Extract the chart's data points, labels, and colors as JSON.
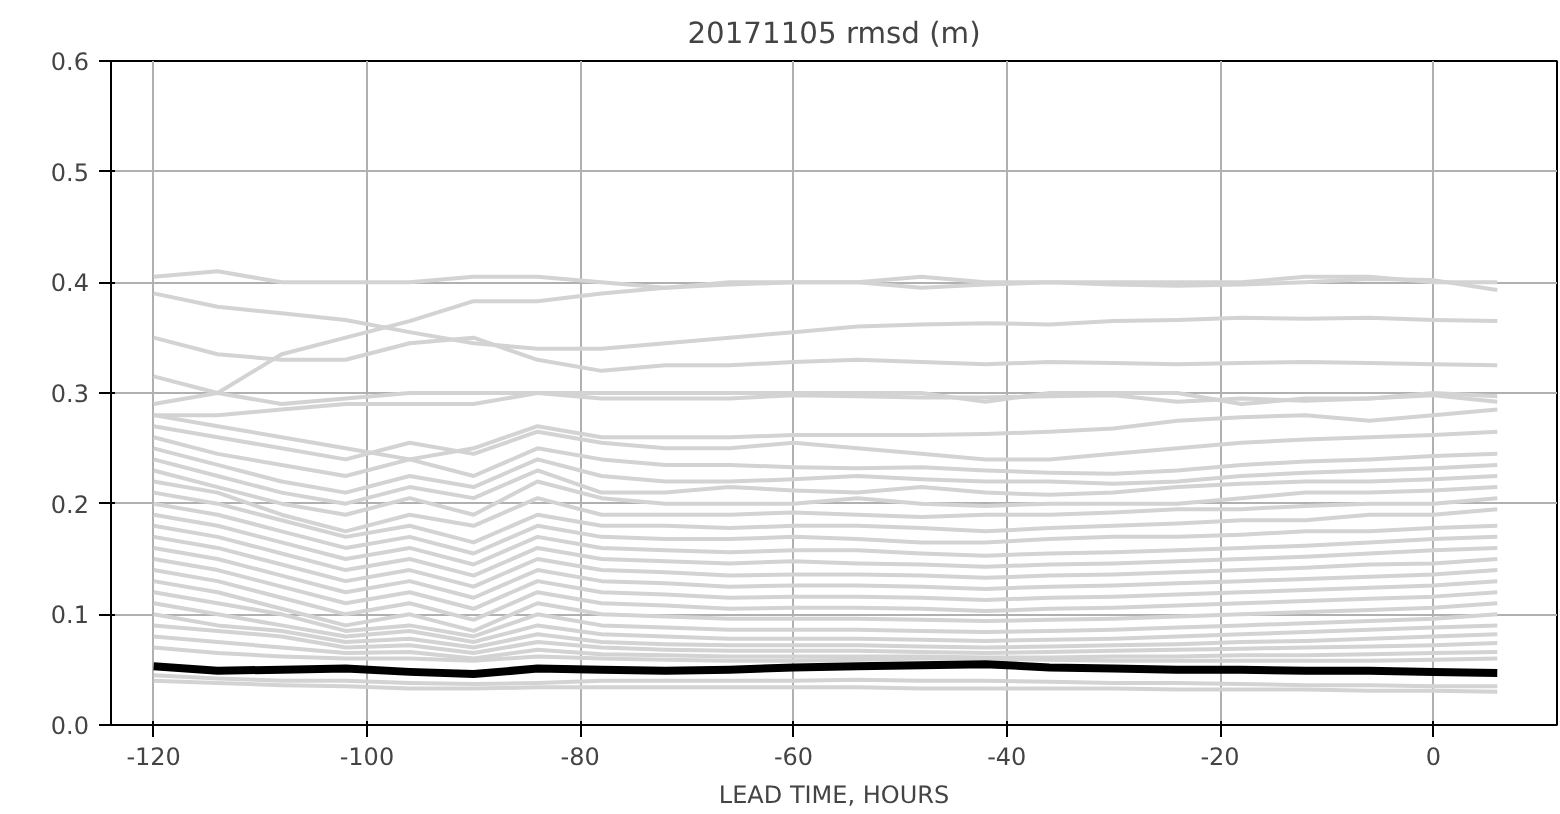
{
  "chart_data": {
    "type": "line",
    "title": "20171105 rmsd (m)",
    "xlabel": "LEAD TIME, HOURS",
    "x": [
      -120,
      -114,
      -108,
      -102,
      -96,
      -90,
      -84,
      -78,
      -72,
      -66,
      -60,
      -54,
      -48,
      -42,
      -36,
      -30,
      -24,
      -18,
      -12,
      -6,
      0,
      6
    ],
    "xlim": [
      -124,
      11.6
    ],
    "ylim": [
      0,
      0.6
    ],
    "xticks": [
      -120,
      -100,
      -80,
      -60,
      -40,
      -20,
      0
    ],
    "yticks": [
      {
        "value": 0,
        "label": "0.0"
      },
      {
        "value": 0.1,
        "label": "0.1"
      },
      {
        "value": 0.2,
        "label": "0.2"
      },
      {
        "value": 0.3,
        "label": "0.3"
      },
      {
        "value": 0.4,
        "label": "0.4"
      },
      {
        "value": 0.5,
        "label": "0.5"
      },
      {
        "value": 0.6,
        "label": "0.6"
      }
    ],
    "grid": true,
    "marker": "none",
    "line_style": "solid",
    "series": [
      {
        "color": "#d3d3d3",
        "values": [
          0.405,
          0.41,
          0.4,
          0.4,
          0.4,
          0.405,
          0.405,
          0.4,
          0.395,
          0.4,
          0.4,
          0.4,
          0.405,
          0.4,
          0.4,
          0.4,
          0.4,
          0.4,
          0.405,
          0.405,
          0.4,
          0.4
        ]
      },
      {
        "color": "#d3d3d3",
        "values": [
          0.39,
          0.378,
          0.372,
          0.366,
          0.355,
          0.345,
          0.34,
          0.34,
          0.345,
          0.35,
          0.355,
          0.36,
          0.362,
          0.363,
          0.362,
          0.365,
          0.366,
          0.368,
          0.367,
          0.368,
          0.366,
          0.365
        ]
      },
      {
        "color": "#d3d3d3",
        "values": [
          0.29,
          0.3,
          0.335,
          0.35,
          0.365,
          0.383,
          0.383,
          0.39,
          0.395,
          0.398,
          0.4,
          0.4,
          0.395,
          0.398,
          0.4,
          0.398,
          0.397,
          0.398,
          0.4,
          0.403,
          0.402,
          0.393
        ]
      },
      {
        "color": "#d3d3d3",
        "values": [
          0.35,
          0.335,
          0.33,
          0.33,
          0.345,
          0.35,
          0.33,
          0.32,
          0.325,
          0.325,
          0.328,
          0.33,
          0.328,
          0.326,
          0.328,
          0.327,
          0.326,
          0.327,
          0.328,
          0.327,
          0.326,
          0.325
        ]
      },
      {
        "color": "#d3d3d3",
        "values": [
          0.315,
          0.3,
          0.29,
          0.295,
          0.3,
          0.3,
          0.3,
          0.295,
          0.295,
          0.295,
          0.298,
          0.297,
          0.296,
          0.296,
          0.297,
          0.298,
          0.292,
          0.295,
          0.293,
          0.295,
          0.298,
          0.292
        ]
      },
      {
        "color": "#d3d3d3",
        "values": [
          0.28,
          0.28,
          0.285,
          0.29,
          0.29,
          0.29,
          0.3,
          0.3,
          0.3,
          0.3,
          0.3,
          0.3,
          0.3,
          0.292,
          0.3,
          0.3,
          0.3,
          0.29,
          0.295,
          0.295,
          0.3,
          0.297
        ]
      },
      {
        "color": "#d3d3d3",
        "values": [
          0.28,
          0.27,
          0.26,
          0.25,
          0.24,
          0.25,
          0.27,
          0.26,
          0.26,
          0.26,
          0.262,
          0.262,
          0.262,
          0.263,
          0.265,
          0.268,
          0.275,
          0.278,
          0.28,
          0.275,
          0.28,
          0.285
        ]
      },
      {
        "color": "#d3d3d3",
        "values": [
          0.27,
          0.26,
          0.25,
          0.24,
          0.255,
          0.245,
          0.265,
          0.255,
          0.25,
          0.25,
          0.255,
          0.25,
          0.245,
          0.24,
          0.24,
          0.245,
          0.25,
          0.255,
          0.258,
          0.26,
          0.262,
          0.265
        ]
      },
      {
        "color": "#d3d3d3",
        "values": [
          0.26,
          0.245,
          0.235,
          0.225,
          0.24,
          0.225,
          0.25,
          0.24,
          0.235,
          0.235,
          0.233,
          0.232,
          0.233,
          0.23,
          0.228,
          0.227,
          0.23,
          0.235,
          0.238,
          0.24,
          0.243,
          0.245
        ]
      },
      {
        "color": "#d3d3d3",
        "values": [
          0.25,
          0.235,
          0.22,
          0.21,
          0.225,
          0.215,
          0.24,
          0.225,
          0.22,
          0.22,
          0.222,
          0.225,
          0.222,
          0.22,
          0.22,
          0.218,
          0.22,
          0.225,
          0.228,
          0.23,
          0.232,
          0.235
        ]
      },
      {
        "color": "#d3d3d3",
        "values": [
          0.24,
          0.225,
          0.21,
          0.2,
          0.215,
          0.205,
          0.23,
          0.21,
          0.21,
          0.215,
          0.212,
          0.21,
          0.215,
          0.21,
          0.208,
          0.21,
          0.215,
          0.218,
          0.22,
          0.22,
          0.222,
          0.225
        ]
      },
      {
        "color": "#d3d3d3",
        "values": [
          0.23,
          0.215,
          0.2,
          0.19,
          0.205,
          0.19,
          0.22,
          0.205,
          0.2,
          0.2,
          0.2,
          0.205,
          0.2,
          0.198,
          0.2,
          0.2,
          0.2,
          0.205,
          0.21,
          0.21,
          0.212,
          0.215
        ]
      },
      {
        "color": "#d3d3d3",
        "values": [
          0.22,
          0.21,
          0.19,
          0.175,
          0.19,
          0.18,
          0.205,
          0.19,
          0.19,
          0.19,
          0.192,
          0.19,
          0.188,
          0.19,
          0.19,
          0.192,
          0.195,
          0.195,
          0.198,
          0.2,
          0.2,
          0.205
        ]
      },
      {
        "color": "#d3d3d3",
        "values": [
          0.21,
          0.2,
          0.185,
          0.17,
          0.18,
          0.165,
          0.19,
          0.18,
          0.18,
          0.178,
          0.18,
          0.18,
          0.178,
          0.175,
          0.178,
          0.18,
          0.182,
          0.185,
          0.185,
          0.19,
          0.19,
          0.195
        ]
      },
      {
        "color": "#d3d3d3",
        "values": [
          0.2,
          0.19,
          0.175,
          0.16,
          0.17,
          0.155,
          0.18,
          0.17,
          0.168,
          0.168,
          0.17,
          0.168,
          0.165,
          0.165,
          0.168,
          0.17,
          0.17,
          0.172,
          0.175,
          0.175,
          0.178,
          0.18
        ]
      },
      {
        "color": "#d3d3d3",
        "values": [
          0.19,
          0.18,
          0.165,
          0.15,
          0.16,
          0.145,
          0.17,
          0.16,
          0.158,
          0.156,
          0.158,
          0.158,
          0.155,
          0.153,
          0.155,
          0.156,
          0.158,
          0.16,
          0.162,
          0.165,
          0.168,
          0.17
        ]
      },
      {
        "color": "#d3d3d3",
        "values": [
          0.18,
          0.17,
          0.155,
          0.14,
          0.15,
          0.135,
          0.16,
          0.15,
          0.148,
          0.146,
          0.148,
          0.146,
          0.145,
          0.143,
          0.145,
          0.146,
          0.148,
          0.15,
          0.152,
          0.155,
          0.158,
          0.16
        ]
      },
      {
        "color": "#d3d3d3",
        "values": [
          0.17,
          0.16,
          0.145,
          0.13,
          0.14,
          0.125,
          0.15,
          0.14,
          0.138,
          0.135,
          0.136,
          0.136,
          0.135,
          0.133,
          0.135,
          0.136,
          0.138,
          0.14,
          0.142,
          0.145,
          0.146,
          0.15
        ]
      },
      {
        "color": "#d3d3d3",
        "values": [
          0.16,
          0.15,
          0.135,
          0.12,
          0.13,
          0.115,
          0.14,
          0.13,
          0.128,
          0.125,
          0.126,
          0.126,
          0.125,
          0.123,
          0.125,
          0.126,
          0.128,
          0.13,
          0.132,
          0.134,
          0.136,
          0.14
        ]
      },
      {
        "color": "#d3d3d3",
        "values": [
          0.15,
          0.14,
          0.125,
          0.11,
          0.12,
          0.105,
          0.13,
          0.12,
          0.118,
          0.115,
          0.116,
          0.116,
          0.115,
          0.113,
          0.115,
          0.116,
          0.118,
          0.12,
          0.122,
          0.124,
          0.126,
          0.13
        ]
      },
      {
        "color": "#d3d3d3",
        "values": [
          0.14,
          0.13,
          0.115,
          0.1,
          0.11,
          0.095,
          0.12,
          0.11,
          0.108,
          0.105,
          0.106,
          0.106,
          0.105,
          0.103,
          0.105,
          0.106,
          0.108,
          0.11,
          0.112,
          0.114,
          0.116,
          0.12
        ]
      },
      {
        "color": "#d3d3d3",
        "values": [
          0.13,
          0.12,
          0.105,
          0.09,
          0.1,
          0.085,
          0.11,
          0.1,
          0.098,
          0.096,
          0.096,
          0.096,
          0.095,
          0.094,
          0.095,
          0.096,
          0.098,
          0.1,
          0.102,
          0.104,
          0.106,
          0.11
        ]
      },
      {
        "color": "#d3d3d3",
        "values": [
          0.12,
          0.11,
          0.1,
          0.085,
          0.09,
          0.08,
          0.1,
          0.09,
          0.088,
          0.086,
          0.086,
          0.086,
          0.085,
          0.084,
          0.085,
          0.086,
          0.088,
          0.09,
          0.092,
          0.094,
          0.096,
          0.1
        ]
      },
      {
        "color": "#d3d3d3",
        "values": [
          0.11,
          0.1,
          0.09,
          0.08,
          0.085,
          0.075,
          0.09,
          0.082,
          0.08,
          0.078,
          0.078,
          0.078,
          0.077,
          0.076,
          0.077,
          0.078,
          0.08,
          0.082,
          0.084,
          0.086,
          0.088,
          0.09
        ]
      },
      {
        "color": "#d3d3d3",
        "values": [
          0.1,
          0.09,
          0.085,
          0.075,
          0.078,
          0.07,
          0.082,
          0.075,
          0.073,
          0.072,
          0.072,
          0.072,
          0.071,
          0.07,
          0.071,
          0.072,
          0.073,
          0.075,
          0.076,
          0.078,
          0.08,
          0.082
        ]
      },
      {
        "color": "#d3d3d3",
        "values": [
          0.09,
          0.085,
          0.08,
          0.07,
          0.072,
          0.065,
          0.075,
          0.07,
          0.068,
          0.067,
          0.067,
          0.067,
          0.066,
          0.065,
          0.066,
          0.067,
          0.068,
          0.069,
          0.07,
          0.071,
          0.072,
          0.074
        ]
      },
      {
        "color": "#d3d3d3",
        "values": [
          0.08,
          0.075,
          0.07,
          0.065,
          0.066,
          0.06,
          0.068,
          0.064,
          0.063,
          0.062,
          0.062,
          0.062,
          0.062,
          0.061,
          0.061,
          0.062,
          0.062,
          0.063,
          0.063,
          0.064,
          0.065,
          0.066
        ]
      },
      {
        "color": "#d3d3d3",
        "values": [
          0.07,
          0.065,
          0.062,
          0.06,
          0.06,
          0.058,
          0.062,
          0.06,
          0.059,
          0.058,
          0.058,
          0.059,
          0.06,
          0.06,
          0.059,
          0.058,
          0.058,
          0.058,
          0.058,
          0.058,
          0.059,
          0.06
        ]
      },
      {
        "color": "#d3d3d3",
        "values": [
          0.045,
          0.042,
          0.04,
          0.04,
          0.038,
          0.037,
          0.038,
          0.04,
          0.04,
          0.04,
          0.04,
          0.041,
          0.04,
          0.04,
          0.039,
          0.038,
          0.038,
          0.037,
          0.036,
          0.036,
          0.035,
          0.035
        ]
      },
      {
        "color": "#d3d3d3",
        "values": [
          0.04,
          0.038,
          0.036,
          0.035,
          0.033,
          0.033,
          0.034,
          0.034,
          0.034,
          0.034,
          0.034,
          0.034,
          0.033,
          0.033,
          0.033,
          0.033,
          0.032,
          0.032,
          0.032,
          0.031,
          0.031,
          0.03
        ]
      },
      {
        "color": "#000000",
        "values": [
          0.053,
          0.049,
          0.05,
          0.051,
          0.048,
          0.046,
          0.051,
          0.05,
          0.049,
          0.05,
          0.052,
          0.053,
          0.054,
          0.055,
          0.052,
          0.051,
          0.05,
          0.05,
          0.049,
          0.049,
          0.048,
          0.047
        ]
      }
    ]
  }
}
